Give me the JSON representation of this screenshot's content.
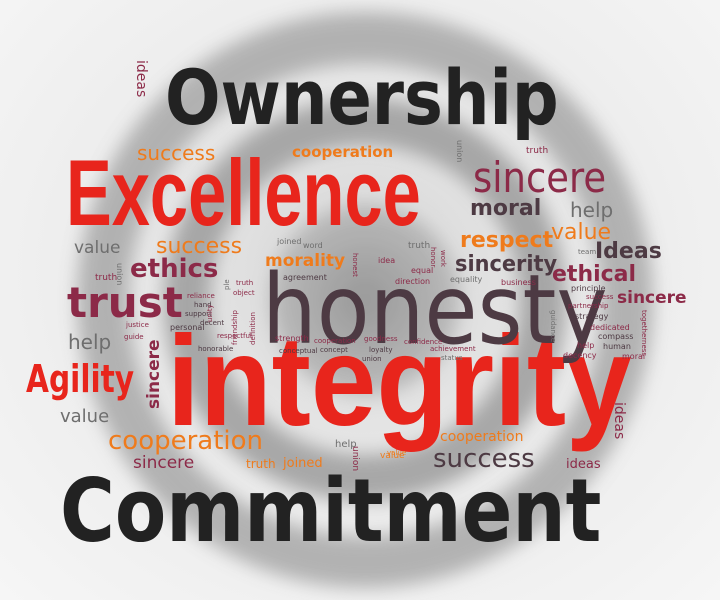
{
  "colors": {
    "black": "#222222",
    "red": "#e8251c",
    "maroon": "#8c2a48",
    "orange": "#ef7b1c",
    "gray": "#6e6e6e",
    "plum": "#4d3a43",
    "ring": "#a9a9a9"
  },
  "words": [
    {
      "text": "Ownership",
      "color": "black"
    },
    {
      "text": "Excellence",
      "color": "red"
    },
    {
      "text": "Commitment",
      "color": "black"
    },
    {
      "text": "integrity",
      "color": "red"
    },
    {
      "text": "honesty",
      "color": "plum"
    },
    {
      "text": "Agility",
      "color": "red"
    },
    {
      "text": "trust",
      "color": "maroon"
    },
    {
      "text": "ethics",
      "color": "maroon"
    },
    {
      "text": "sincere",
      "color": "maroon"
    },
    {
      "text": "moral",
      "color": "plum"
    },
    {
      "text": "help",
      "color": "gray"
    },
    {
      "text": "respect",
      "color": "orange"
    },
    {
      "text": "value",
      "color": "orange"
    },
    {
      "text": "Ideas",
      "color": "plum"
    },
    {
      "text": "sincerity",
      "color": "plum"
    },
    {
      "text": "ethical",
      "color": "maroon"
    },
    {
      "text": "sincere",
      "color": "maroon"
    },
    {
      "text": "success",
      "color": "orange"
    },
    {
      "text": "cooperation",
      "color": "orange"
    },
    {
      "text": "success",
      "color": "orange"
    },
    {
      "text": "value",
      "color": "gray"
    },
    {
      "text": "morality",
      "color": "orange"
    },
    {
      "text": "help",
      "color": "gray"
    },
    {
      "text": "value",
      "color": "gray"
    },
    {
      "text": "cooperation",
      "color": "orange"
    },
    {
      "text": "sincere",
      "color": "maroon"
    },
    {
      "text": "success",
      "color": "plum"
    },
    {
      "text": "cooperation",
      "color": "orange"
    },
    {
      "text": "sincere",
      "color": "maroon"
    },
    {
      "text": "truth",
      "color": "orange"
    },
    {
      "text": "joined",
      "color": "orange"
    },
    {
      "text": "ideas",
      "color": "maroon"
    },
    {
      "text": "ideas",
      "color": "maroon"
    },
    {
      "text": "ideas",
      "color": "maroon"
    },
    {
      "text": "value",
      "color": "orange"
    },
    {
      "text": "help",
      "color": "gray"
    },
    {
      "text": "union",
      "color": "maroon"
    },
    {
      "text": "union",
      "color": "gray"
    },
    {
      "text": "union",
      "color": "gray"
    },
    {
      "text": "truth",
      "color": "maroon"
    },
    {
      "text": "truth",
      "color": "gray"
    },
    {
      "text": "truth",
      "color": "maroon"
    },
    {
      "text": "joined",
      "color": "gray"
    },
    {
      "text": "word",
      "color": "gray"
    },
    {
      "text": "agreement",
      "color": "plum"
    },
    {
      "text": "honest",
      "color": "maroon"
    },
    {
      "text": "idea",
      "color": "maroon"
    },
    {
      "text": "equal",
      "color": "maroon"
    },
    {
      "text": "honor",
      "color": "maroon"
    },
    {
      "text": "work",
      "color": "maroon"
    },
    {
      "text": "direction",
      "color": "maroon"
    },
    {
      "text": "equality",
      "color": "gray"
    },
    {
      "text": "business",
      "color": "maroon"
    },
    {
      "text": "team",
      "color": "gray"
    },
    {
      "text": "principle",
      "color": "plum"
    },
    {
      "text": "success",
      "color": "maroon"
    },
    {
      "text": "strategy",
      "color": "plum"
    },
    {
      "text": "partnership",
      "color": "maroon"
    },
    {
      "text": "guidance",
      "color": "gray"
    },
    {
      "text": "dedicated",
      "color": "maroon"
    },
    {
      "text": "compass",
      "color": "plum"
    },
    {
      "text": "human",
      "color": "plum"
    },
    {
      "text": "help",
      "color": "maroon"
    },
    {
      "text": "decency",
      "color": "maroon"
    },
    {
      "text": "moral",
      "color": "maroon"
    },
    {
      "text": "togetherness",
      "color": "maroon"
    },
    {
      "text": "truth",
      "color": "maroon"
    },
    {
      "text": "ple",
      "color": "gray"
    },
    {
      "text": "object",
      "color": "maroon"
    },
    {
      "text": "reliance",
      "color": "maroon"
    },
    {
      "text": "hand",
      "color": "plum"
    },
    {
      "text": "support",
      "color": "plum"
    },
    {
      "text": "decent",
      "color": "plum"
    },
    {
      "text": "unity",
      "color": "maroon"
    },
    {
      "text": "friendship",
      "color": "maroon"
    },
    {
      "text": "definition",
      "color": "maroon"
    },
    {
      "text": "justice",
      "color": "maroon"
    },
    {
      "text": "guide",
      "color": "maroon"
    },
    {
      "text": "personal",
      "color": "plum"
    },
    {
      "text": "respectful",
      "color": "maroon"
    },
    {
      "text": "strength",
      "color": "maroon"
    },
    {
      "text": "honorable",
      "color": "plum"
    },
    {
      "text": "cooperation",
      "color": "maroon"
    },
    {
      "text": "goodness",
      "color": "maroon"
    },
    {
      "text": "confidence",
      "color": "maroon"
    },
    {
      "text": "conceptual",
      "color": "plum"
    },
    {
      "text": "concept",
      "color": "plum"
    },
    {
      "text": "loyalty",
      "color": "plum"
    },
    {
      "text": "achievement",
      "color": "maroon"
    },
    {
      "text": "status",
      "color": "gray"
    },
    {
      "text": "union",
      "color": "plum"
    },
    {
      "text": "value",
      "color": "orange"
    }
  ]
}
